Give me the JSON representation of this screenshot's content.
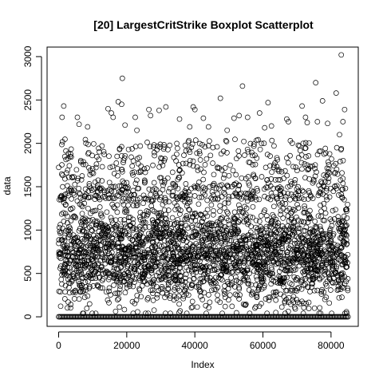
{
  "chart_data": {
    "type": "scatter",
    "title": "[20] LargestCritStrike Boxplot Scatterplot",
    "xlabel": "Index",
    "ylabel": "data",
    "xlim": [
      -3400,
      88000
    ],
    "ylim": [
      -110,
      3110
    ],
    "x_ticks": [
      0,
      20000,
      40000,
      60000,
      80000
    ],
    "x_tick_labels": [
      "0",
      "20000",
      "40000",
      "60000",
      "80000"
    ],
    "y_ticks": [
      0,
      500,
      1000,
      1500,
      2000,
      2500,
      3000
    ],
    "y_tick_labels": [
      "0",
      "500",
      "1000",
      "1500",
      "2000",
      "2500",
      "3000"
    ],
    "n_points": 85000,
    "point_style": "open circle",
    "band": {
      "x_range": [
        0,
        85000
      ],
      "dense_y_range": [
        80,
        1400
      ],
      "zero_row": 0
    },
    "outliers": [
      {
        "x": 1000,
        "y": 2300
      },
      {
        "x": 1500,
        "y": 2430
      },
      {
        "x": 5500,
        "y": 2300
      },
      {
        "x": 6000,
        "y": 2220
      },
      {
        "x": 8500,
        "y": 2190
      },
      {
        "x": 14500,
        "y": 2400
      },
      {
        "x": 15500,
        "y": 2350
      },
      {
        "x": 16000,
        "y": 2300
      },
      {
        "x": 17500,
        "y": 2480
      },
      {
        "x": 18500,
        "y": 2450
      },
      {
        "x": 18700,
        "y": 2750
      },
      {
        "x": 19500,
        "y": 2210
      },
      {
        "x": 22500,
        "y": 2300
      },
      {
        "x": 23000,
        "y": 2150
      },
      {
        "x": 26500,
        "y": 2390
      },
      {
        "x": 27000,
        "y": 2320
      },
      {
        "x": 29500,
        "y": 2380
      },
      {
        "x": 31500,
        "y": 2420
      },
      {
        "x": 35500,
        "y": 2280
      },
      {
        "x": 38500,
        "y": 2190
      },
      {
        "x": 39500,
        "y": 2420
      },
      {
        "x": 40000,
        "y": 2390
      },
      {
        "x": 42500,
        "y": 2290
      },
      {
        "x": 44000,
        "y": 2190
      },
      {
        "x": 47500,
        "y": 2520
      },
      {
        "x": 49500,
        "y": 2150
      },
      {
        "x": 51500,
        "y": 2290
      },
      {
        "x": 53000,
        "y": 2320
      },
      {
        "x": 54000,
        "y": 2660
      },
      {
        "x": 55500,
        "y": 2300
      },
      {
        "x": 59000,
        "y": 2350
      },
      {
        "x": 60500,
        "y": 2180
      },
      {
        "x": 61500,
        "y": 2470
      },
      {
        "x": 62500,
        "y": 2200
      },
      {
        "x": 67000,
        "y": 2280
      },
      {
        "x": 67500,
        "y": 2250
      },
      {
        "x": 71500,
        "y": 2430
      },
      {
        "x": 72500,
        "y": 2300
      },
      {
        "x": 73000,
        "y": 2240
      },
      {
        "x": 75500,
        "y": 2700
      },
      {
        "x": 76000,
        "y": 2250
      },
      {
        "x": 77500,
        "y": 2490
      },
      {
        "x": 79000,
        "y": 2230
      },
      {
        "x": 81500,
        "y": 2580
      },
      {
        "x": 82500,
        "y": 2100
      },
      {
        "x": 83000,
        "y": 3020
      },
      {
        "x": 83500,
        "y": 2250
      },
      {
        "x": 84000,
        "y": 2390
      }
    ]
  }
}
